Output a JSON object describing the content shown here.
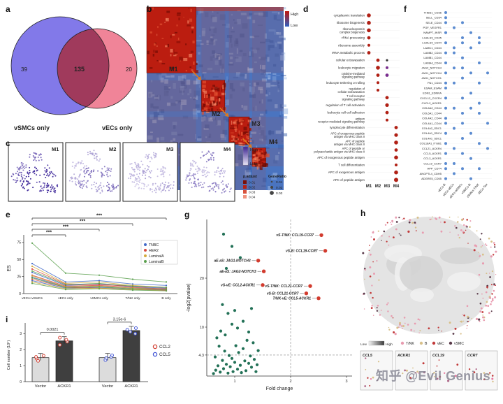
{
  "figure": {
    "watermark": "知乎 @Evil Genius"
  },
  "panels": {
    "a": {
      "letter": "a"
    },
    "b": {
      "letter": "b"
    },
    "c": {
      "letter": "c"
    },
    "d": {
      "letter": "d"
    },
    "e": {
      "letter": "e"
    },
    "f": {
      "letter": "f"
    },
    "g": {
      "letter": "g"
    },
    "h": {
      "letter": "h"
    },
    "i": {
      "letter": "i"
    }
  },
  "chart_data": [
    {
      "panel": "a",
      "type": "venn",
      "sets": [
        {
          "label": "vSMCs only",
          "value": 39,
          "color": "#7b72e8"
        },
        {
          "label": "vECs only",
          "value": 20,
          "color": "#ef7d92"
        }
      ],
      "overlap": 135,
      "overlap_color": "#a03a5c"
    },
    {
      "panel": "b",
      "type": "heatmap",
      "legend": {
        "high": "High",
        "low": "Low",
        "high_color": "#c0160c",
        "low_color": "#3060c0"
      },
      "modules": [
        {
          "name": "M1",
          "frac_start": 0,
          "frac_end": 0.36
        },
        {
          "name": "M2",
          "frac_start": 0.4,
          "frac_end": 0.57
        },
        {
          "name": "M3",
          "frac_start": 0.6,
          "frac_end": 0.75
        },
        {
          "name": "M4",
          "frac_start": 0.77,
          "frac_end": 0.87
        }
      ]
    },
    {
      "panel": "c",
      "type": "umap-grid",
      "legend": {
        "high": "High",
        "low": "Low"
      },
      "modules": [
        {
          "name": "M1",
          "intensity": 0.9
        },
        {
          "name": "M2",
          "intensity": 0.45
        },
        {
          "name": "M3",
          "intensity": 0.22
        },
        {
          "name": "M4",
          "intensity": 0.38
        }
      ]
    },
    {
      "panel": "d",
      "type": "dotplot",
      "columns": [
        "M1",
        "M2",
        "M3",
        "M4"
      ],
      "rows": [
        "cytoplasmic translation",
        "ribosome biogenesis",
        "ribonucleoprotein complex biogenesis",
        "rRNA processing",
        "ribosome assembly",
        "rRNA metabolic process",
        "cellular extravasation",
        "leukocyte migration",
        "cytokine-mediated signaling pathway",
        "leukocyte tethering or rolling",
        "regulation of cellular extravasation",
        "T cell receptor signaling pathway",
        "regulation of T cell activation",
        "leukocyte cell-cell adhesion",
        "antigen receptor-mediated signaling pathway",
        "lymphocyte differentiation",
        "APC of exogenous peptide antigen via MHC class II",
        "APC of peptide antigen via MHC class II",
        "APC of peptide or polysaccharide antigen via MHC class II",
        "APC of exogenous peptide antigen",
        "T cell differentiation",
        "APC of exogenous antigen",
        "APC of peptide antigen"
      ],
      "dots": [
        {
          "r": 0,
          "c": 0,
          "s": 2.8
        },
        {
          "r": 1,
          "c": 0,
          "s": 2.8
        },
        {
          "r": 2,
          "c": 0,
          "s": 2.8
        },
        {
          "r": 3,
          "c": 0,
          "s": 2.4
        },
        {
          "r": 4,
          "c": 0,
          "s": 2
        },
        {
          "r": 5,
          "c": 0,
          "s": 2.4
        },
        {
          "r": 6,
          "c": 1,
          "s": 2.4
        },
        {
          "r": 6,
          "c": 2,
          "s": 1.6,
          "col": "#333333"
        },
        {
          "r": 7,
          "c": 1,
          "s": 2.8
        },
        {
          "r": 7,
          "c": 2,
          "s": 2,
          "col": "#7a2f8f"
        },
        {
          "r": 8,
          "c": 1,
          "s": 2.4
        },
        {
          "r": 8,
          "c": 2,
          "s": 2.4,
          "col": "#7a2f8f"
        },
        {
          "r": 9,
          "c": 1,
          "s": 2
        },
        {
          "r": 10,
          "c": 1,
          "s": 2
        },
        {
          "r": 11,
          "c": 2,
          "s": 2.4
        },
        {
          "r": 12,
          "c": 2,
          "s": 2.6
        },
        {
          "r": 13,
          "c": 2,
          "s": 2.4
        },
        {
          "r": 14,
          "c": 2,
          "s": 2
        },
        {
          "r": 15,
          "c": 3,
          "s": 2.4
        },
        {
          "r": 16,
          "c": 3,
          "s": 2.6
        },
        {
          "r": 17,
          "c": 3,
          "s": 2.8
        },
        {
          "r": 18,
          "c": 3,
          "s": 2.4
        },
        {
          "r": 19,
          "c": 3,
          "s": 2.8
        },
        {
          "r": 20,
          "c": 3,
          "s": 2
        },
        {
          "r": 21,
          "c": 3,
          "s": 2.8
        },
        {
          "r": 22,
          "c": 3,
          "s": 3
        }
      ],
      "legend": {
        "color_title": "p.adjust",
        "color_values": [
          "0.01",
          "0.02",
          "0.03",
          "0.04"
        ],
        "size_title": "GeneRatio",
        "size_values": [
          "0.01",
          "0.02",
          "0.03"
        ]
      }
    },
    {
      "panel": "e",
      "type": "line",
      "ylabel": "ES",
      "yticks": [
        0,
        25,
        50,
        75
      ],
      "categories": [
        "vECs+vSMCs",
        "vECs only",
        "vSMCs only",
        "T/NK only",
        "B only"
      ],
      "groups": [
        {
          "name": "TNBC",
          "color": "#4169c8"
        },
        {
          "name": "HER2",
          "color": "#d84b40"
        },
        {
          "name": "LuminalA",
          "color": "#d4aa3c"
        },
        {
          "name": "LuminalB",
          "color": "#5aa04e"
        }
      ],
      "series": [
        {
          "g": 0,
          "v": [
            44,
            17,
            19,
            14,
            12
          ]
        },
        {
          "g": 0,
          "v": [
            31,
            12,
            14,
            10,
            8
          ]
        },
        {
          "g": 0,
          "v": [
            24,
            10,
            11,
            8,
            7
          ]
        },
        {
          "g": 0,
          "v": [
            19,
            8,
            9,
            7,
            5
          ]
        },
        {
          "g": 1,
          "v": [
            36,
            14,
            13,
            11,
            9
          ]
        },
        {
          "g": 1,
          "v": [
            27,
            11,
            12,
            9,
            7
          ]
        },
        {
          "g": 1,
          "v": [
            21,
            9,
            8,
            6,
            5
          ]
        },
        {
          "g": 2,
          "v": [
            40,
            15,
            17,
            12,
            9
          ]
        },
        {
          "g": 2,
          "v": [
            26,
            10,
            11,
            8,
            6
          ]
        },
        {
          "g": 2,
          "v": [
            17,
            7,
            8,
            6,
            4
          ]
        },
        {
          "g": 3,
          "v": [
            74,
            30,
            27,
            21,
            17
          ]
        },
        {
          "g": 3,
          "v": [
            33,
            13,
            15,
            11,
            9
          ]
        },
        {
          "g": 3,
          "v": [
            23,
            9,
            10,
            7,
            6
          ]
        },
        {
          "g": 3,
          "v": [
            15,
            6,
            7,
            5,
            4
          ]
        }
      ],
      "significance": [
        {
          "from": 0,
          "to": 1,
          "label": "***"
        },
        {
          "from": 0,
          "to": 2,
          "label": "***"
        },
        {
          "from": 0,
          "to": 3,
          "label": "***"
        },
        {
          "from": 0,
          "to": 4,
          "label": "***"
        }
      ]
    },
    {
      "panel": "f",
      "type": "dotplot2",
      "dot_color": "#5b8bd0",
      "columns": [
        "vECs-B",
        "vECs-aECs",
        "aECs-aSMCs",
        "vSMCs-B",
        "vSMCs-T/NK",
        "dECs-Tex"
      ],
      "rows": [
        "THBS1_CD36",
        "SELL_CD34",
        "SELE_CD44",
        "PGF_VEGFR1",
        "NAMPT_INSR",
        "LGALS9_CD45",
        "LGALS9_CD44",
        "LAMC1_CD44",
        "LAMB2_CD44",
        "LAMB1_CD44",
        "LAMA4_CD44",
        "JAG2_NOTCH4",
        "JAG1_NOTCH4",
        "JAG1_NOTCH1",
        "FN1_CD44",
        "ESAM_ESAM",
        "EDN1_EDNRA",
        "CXCL12_CXCR4",
        "CXCL2_ACKR1",
        "COL6A2_CD44",
        "COL6A1_CD44",
        "COL4A2_CD44",
        "COL4A1_CD44",
        "COL4A2_SDC1",
        "COL4A1_SDC4",
        "COL4A1_SDC1",
        "COL18A1_ITGB1",
        "CCL21_ACKR4",
        "CCL5_ACKR1",
        "CCL2_ACKR1",
        "CCL19_CCR7",
        "APP_CD74",
        "ANGPTL4_CDH5",
        "ADGRE5_CD55"
      ],
      "cells": [
        [
          0
        ],
        [
          0
        ],
        [
          0,
          2
        ],
        [
          1
        ],
        [
          0,
          3
        ],
        [
          2,
          4
        ],
        [
          0,
          2,
          4
        ],
        [
          1,
          3
        ],
        [
          0,
          1
        ],
        [
          2
        ],
        [
          0,
          4
        ],
        [
          1,
          2
        ],
        [
          0,
          3,
          5
        ],
        [
          2
        ],
        [
          0,
          1,
          4
        ],
        [
          0
        ],
        [
          3
        ],
        [
          0,
          2
        ],
        [
          4
        ],
        [
          0,
          1,
          3
        ],
        [
          2,
          4
        ],
        [
          0
        ],
        [
          0,
          2,
          5
        ],
        [
          1
        ],
        [
          0,
          3
        ],
        [
          2
        ],
        [
          0,
          4
        ],
        [
          1,
          5
        ],
        [
          0,
          2
        ],
        [
          3
        ],
        [
          0,
          1
        ],
        [
          0,
          2,
          4
        ],
        [
          1
        ],
        [
          0,
          3
        ]
      ]
    },
    {
      "panel": "g",
      "type": "scatter",
      "xlabel": "Fold change",
      "ylabel": "-log2(pvalue)",
      "xticks": [
        1,
        2,
        3
      ],
      "yticks": [
        4.3,
        10,
        20
      ],
      "hline": 4.3,
      "vline": 2,
      "labeled_points": [
        {
          "label": "vS-T/NK: CCL19-CCR7",
          "x": 2.55,
          "y": 28.8
        },
        {
          "label": "vS-B: CCL19-CCR7",
          "x": 2.62,
          "y": 25.6
        },
        {
          "label": "aE-aS: JAG1-NOTCH3",
          "x": 1.42,
          "y": 23.6
        },
        {
          "label": "aE-aS: JAG2-NOTCH3",
          "x": 1.52,
          "y": 21.4
        },
        {
          "label": "vS-vE: CCL2-ACKR1",
          "x": 1.5,
          "y": 18.6
        },
        {
          "label": "vS-T/NK: CCL21-CCR7",
          "x": 2.35,
          "y": 18.4
        },
        {
          "label": "vS-B: CCL21-CCR7",
          "x": 2.28,
          "y": 16.9
        },
        {
          "label": "T/NK-vE: CCL5-ACKR1",
          "x": 2.5,
          "y": 15.9
        }
      ],
      "points": [
        [
          0.62,
          0.5
        ],
        [
          0.66,
          1.2
        ],
        [
          0.7,
          2.1
        ],
        [
          0.74,
          0.8
        ],
        [
          0.78,
          3.2
        ],
        [
          0.8,
          1.5
        ],
        [
          0.82,
          5.1
        ],
        [
          0.85,
          2.4
        ],
        [
          0.88,
          0.6
        ],
        [
          0.9,
          4.2
        ],
        [
          0.92,
          1.9
        ],
        [
          0.95,
          3.6
        ],
        [
          0.97,
          0.9
        ],
        [
          1,
          2.8
        ],
        [
          1.02,
          6.2
        ],
        [
          1.05,
          1.4
        ],
        [
          1.07,
          4.8
        ],
        [
          1.1,
          2.2
        ],
        [
          1.12,
          0.7
        ],
        [
          1.15,
          5.6
        ],
        [
          1.18,
          3.1
        ],
        [
          1.2,
          1.1
        ],
        [
          1.22,
          7.3
        ],
        [
          1.25,
          2.6
        ],
        [
          1.28,
          4.1
        ],
        [
          1.3,
          1.8
        ],
        [
          1.33,
          6.8
        ],
        [
          1.35,
          3.4
        ],
        [
          1.38,
          0.9
        ],
        [
          1.4,
          2.3
        ],
        [
          0.68,
          7.8
        ],
        [
          0.75,
          9.2
        ],
        [
          0.83,
          8.4
        ],
        [
          0.95,
          10.6
        ],
        [
          1.05,
          9.8
        ],
        [
          1.15,
          11.2
        ],
        [
          0.88,
          12.8
        ],
        [
          1,
          13.4
        ],
        [
          0.72,
          6.1
        ],
        [
          1.25,
          9
        ],
        [
          0.8,
          29
        ],
        [
          0.95,
          26.5
        ],
        [
          1.1,
          24.2
        ],
        [
          0.85,
          22
        ],
        [
          1.3,
          13.8
        ],
        [
          0.65,
          3.9
        ],
        [
          1.42,
          5.2
        ],
        [
          0.78,
          14.6
        ]
      ]
    },
    {
      "panel": "h",
      "type": "spatial",
      "legend_gradient": [
        "Low",
        "High"
      ],
      "categories": [
        {
          "name": "T/NK",
          "color": "#e89cb0"
        },
        {
          "name": "B",
          "color": "#d8c08a"
        },
        {
          "name": "vEC",
          "color": "#c23a3a"
        },
        {
          "name": "vSMC",
          "color": "#5a3a4a"
        }
      ],
      "insets": [
        "CCL5",
        "ACKR1",
        "CCL19",
        "CCR7"
      ]
    },
    {
      "panel": "i",
      "type": "bar",
      "ylabel": "Cell number (10⁵)",
      "yticks": [
        0,
        1,
        2,
        3
      ],
      "groups": [
        {
          "name": "CCL2",
          "pvalue": "0.0021",
          "bars": [
            {
              "label": "Vector",
              "value": 1.5,
              "points": [
                1.3,
                1.45,
                1.55,
                1.62
              ]
            },
            {
              "label": "ACKR1",
              "value": 2.55,
              "points": [
                2.3,
                2.5,
                2.62,
                2.75
              ]
            }
          ]
        },
        {
          "name": "CCL5",
          "pvalue": "3.15e-6",
          "bars": [
            {
              "label": "Vector",
              "value": 1.5,
              "points": [
                1.35,
                1.48,
                1.55,
                1.65
              ]
            },
            {
              "label": "ACKR1",
              "value": 3.2,
              "points": [
                3,
                3.12,
                3.25,
                3.35
              ]
            }
          ]
        }
      ],
      "legend": [
        {
          "name": "CCL2",
          "color": "#d23b2e"
        },
        {
          "name": "CCL5",
          "color": "#3b4fd4"
        }
      ]
    }
  ]
}
